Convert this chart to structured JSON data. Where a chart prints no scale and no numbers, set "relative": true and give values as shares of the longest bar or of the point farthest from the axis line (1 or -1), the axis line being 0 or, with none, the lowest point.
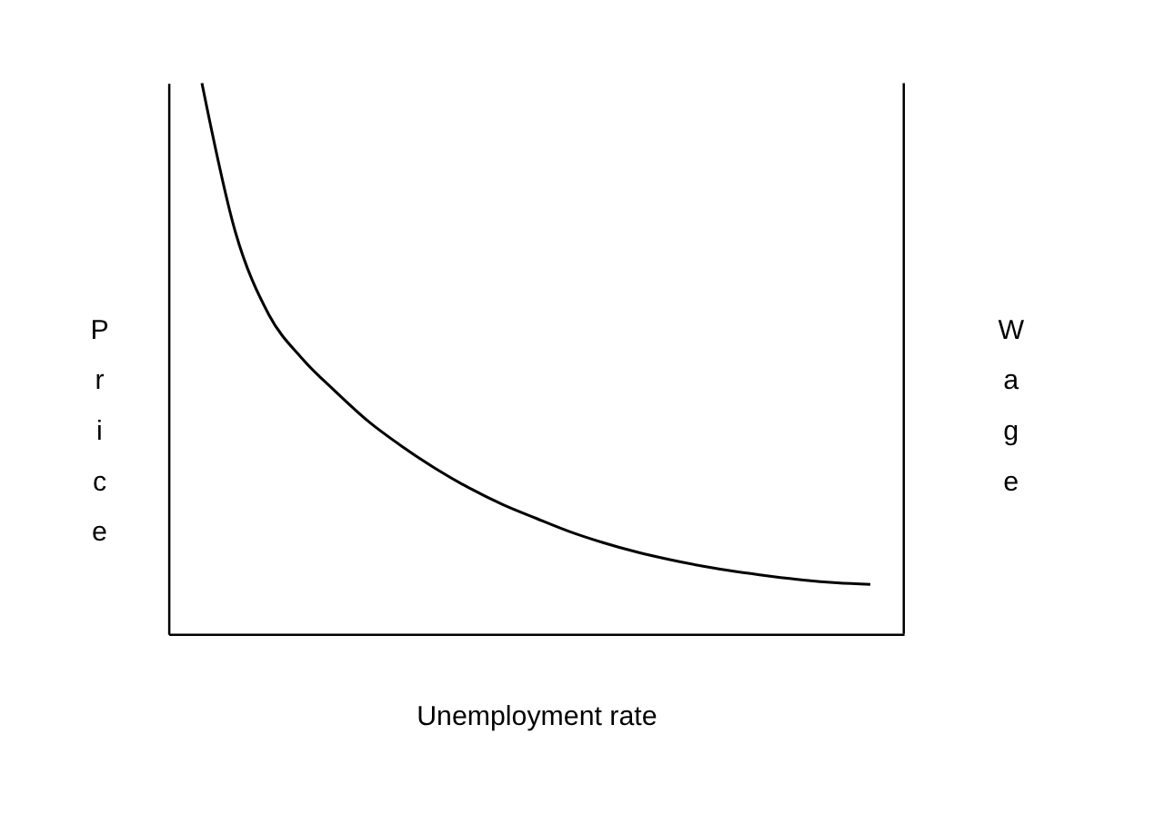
{
  "chart_data": {
    "type": "line",
    "relative": true,
    "xlabel": "Unemployment rate",
    "ylabel": "Price",
    "y2label": "Wage",
    "categories": [
      null,
      null,
      null,
      null,
      null,
      null,
      null,
      null,
      null,
      null,
      null,
      null,
      null,
      null,
      null,
      null,
      null,
      null,
      null,
      null,
      null
    ],
    "series": [
      {
        "color": "#000000",
        "values": [
          1.0,
          0.73,
          0.58,
          0.5,
          0.44,
          0.385,
          0.34,
          0.3,
          0.265,
          0.235,
          0.21,
          0.186,
          0.166,
          0.149,
          0.135,
          0.123,
          0.113,
          0.105,
          0.098,
          0.093,
          0.09
        ]
      }
    ],
    "marker": "none",
    "line_style": "solid",
    "grid": false,
    "legend": false
  }
}
